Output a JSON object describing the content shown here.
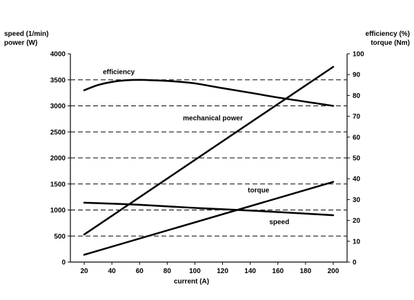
{
  "chart_data": {
    "type": "line",
    "title": "",
    "xlabel": "current (A)",
    "ylabel_left": [
      "speed (1/min)",
      "power (W)"
    ],
    "ylabel_right": [
      "efficiency (%)",
      "torque (Nm)"
    ],
    "xlim": [
      10,
      210
    ],
    "xticks": [
      20,
      40,
      60,
      80,
      100,
      120,
      140,
      160,
      180,
      200
    ],
    "ylim_left": [
      0,
      4000
    ],
    "yticks_left": [
      0,
      500,
      1000,
      1500,
      2000,
      2500,
      3000,
      3500,
      4000
    ],
    "ylim_right": [
      0,
      100
    ],
    "yticks_right": [
      0,
      10,
      20,
      30,
      40,
      50,
      60,
      70,
      80,
      90,
      100
    ],
    "grid": "horizontal-dashed",
    "series": [
      {
        "name": "efficiency",
        "axis": "right",
        "x": [
          20,
          30,
          40,
          50,
          60,
          70,
          80,
          90,
          100,
          120,
          140,
          160,
          180,
          200
        ],
        "y": [
          82.5,
          85,
          86.5,
          87.3,
          87.5,
          87.3,
          87,
          86.5,
          85.8,
          83.5,
          81.3,
          79,
          77,
          75
        ]
      },
      {
        "name": "mechanical power",
        "axis": "left",
        "x": [
          20,
          200
        ],
        "y": [
          530,
          3750
        ]
      },
      {
        "name": "torque",
        "axis": "right",
        "x": [
          20,
          200
        ],
        "y": [
          3.5,
          38.5
        ]
      },
      {
        "name": "speed",
        "axis": "left",
        "x": [
          20,
          60,
          100,
          140,
          200
        ],
        "y": [
          1140,
          1100,
          1040,
          990,
          900
        ]
      }
    ],
    "annotations": [
      {
        "text": "efficiency",
        "x": 45,
        "y_left": 3610
      },
      {
        "text": "mechanical power",
        "x": 113,
        "y_left": 2720
      },
      {
        "text": "torque",
        "x": 146,
        "y_left": 1340
      },
      {
        "text": "speed",
        "x": 161,
        "y_left": 730
      }
    ]
  }
}
